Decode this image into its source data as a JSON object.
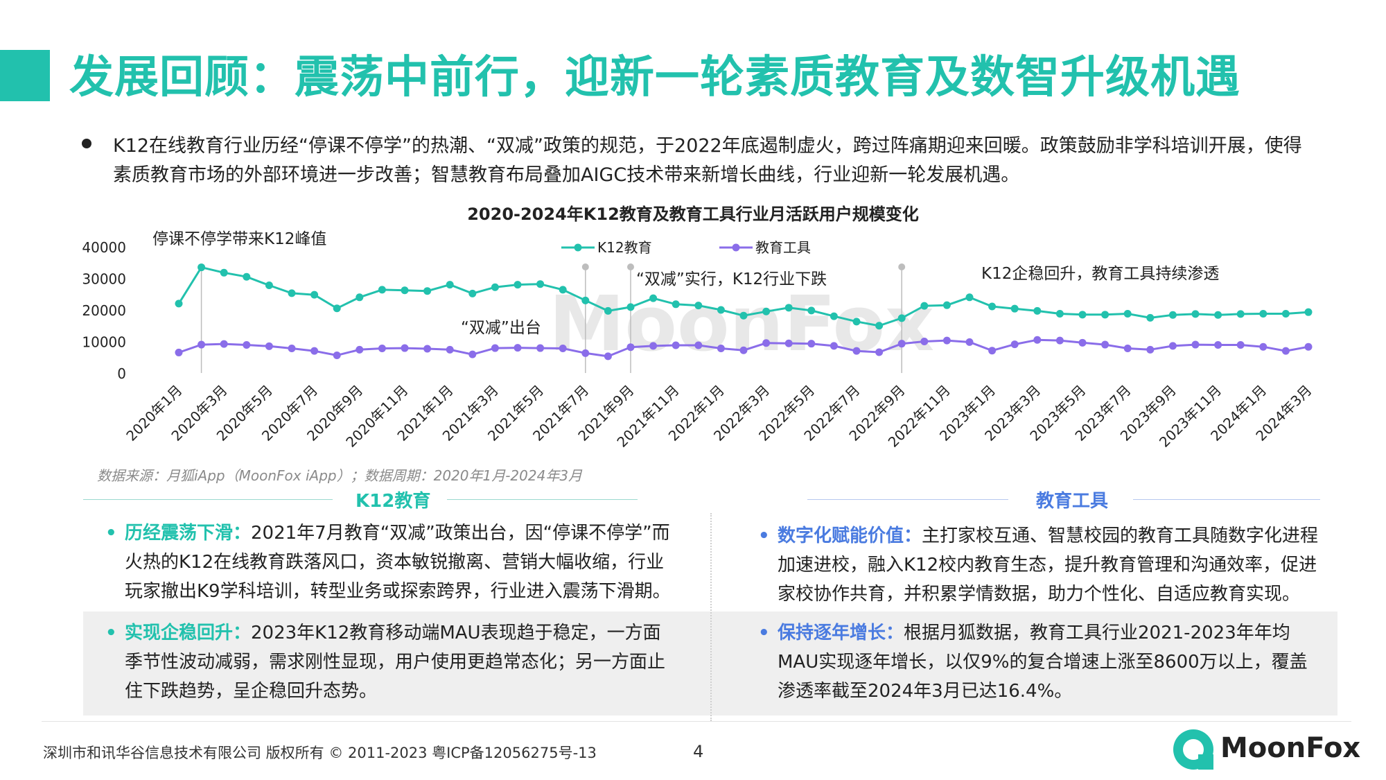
{
  "title": "发展回顾：震荡中前行，迎新一轮素质教育及数智升级机遇",
  "intro": "K12在线教育行业历经“停课不停学”的热潮、“双减”政策的规范，于2022年底遏制虚火，跨过阵痛期迎来回暖。政策鼓励非学科培训开展，使得素质教育市场的外部环境进一步改善；智慧教育布局叠加AIGC技术带来新增长曲线，行业迎新一轮发展机遇。",
  "chart_data": {
    "type": "line",
    "title": "2020-2024年K12教育及教育工具行业月活跃用户规模变化",
    "ylim": [
      0,
      40000
    ],
    "yticks": [
      "40000",
      "30000",
      "20000",
      "10000",
      "0"
    ],
    "x": [
      "2020年1月",
      "2020年2月",
      "2020年3月",
      "2020年4月",
      "2020年5月",
      "2020年6月",
      "2020年7月",
      "2020年8月",
      "2020年9月",
      "2020年10月",
      "2020年11月",
      "2020年12月",
      "2021年1月",
      "2021年2月",
      "2021年3月",
      "2021年4月",
      "2021年5月",
      "2021年6月",
      "2021年7月",
      "2021年8月",
      "2021年9月",
      "2021年10月",
      "2021年11月",
      "2021年12月",
      "2022年1月",
      "2022年2月",
      "2022年3月",
      "2022年4月",
      "2022年5月",
      "2022年6月",
      "2022年7月",
      "2022年8月",
      "2022年9月",
      "2022年10月",
      "2022年11月",
      "2022年12月",
      "2023年1月",
      "2023年2月",
      "2023年3月",
      "2023年4月",
      "2023年5月",
      "2023年6月",
      "2023年7月",
      "2023年8月",
      "2023年9月",
      "2023年10月",
      "2023年11月",
      "2023年12月",
      "2024年1月",
      "2024年2月",
      "2024年3月"
    ],
    "xtick_labels": [
      "2020年1月",
      "2020年3月",
      "2020年5月",
      "2020年7月",
      "2020年9月",
      "2020年11月",
      "2021年1月",
      "2021年3月",
      "2021年5月",
      "2021年7月",
      "2021年9月",
      "2021年11月",
      "2022年1月",
      "2022年3月",
      "2022年5月",
      "2022年7月",
      "2022年9月",
      "2022年11月",
      "2023年1月",
      "2023年3月",
      "2023年5月",
      "2023年7月",
      "2023年9月",
      "2023年11月",
      "2024年1月",
      "2024年3月"
    ],
    "series": [
      {
        "name": "K12教育",
        "color": "#22c1ad",
        "values": [
          22000,
          33500,
          31800,
          30500,
          27800,
          25300,
          24800,
          20500,
          24000,
          26400,
          26200,
          26000,
          28000,
          25200,
          27200,
          28000,
          28200,
          26400,
          23000,
          19700,
          20900,
          23700,
          21800,
          21400,
          20000,
          18200,
          19500,
          20700,
          19800,
          18000,
          16300,
          15000,
          17400,
          21300,
          21500,
          24000,
          21100,
          20400,
          19700,
          18800,
          18500,
          18500,
          18800,
          17500,
          18400,
          18700,
          18400,
          18700,
          18800,
          18800,
          19300
        ]
      },
      {
        "name": "教育工具",
        "color": "#8a6de9",
        "values": [
          6500,
          9000,
          9200,
          8900,
          8500,
          7800,
          7000,
          5600,
          7400,
          7800,
          7900,
          7700,
          7400,
          5900,
          7900,
          8000,
          7900,
          7800,
          6300,
          5300,
          8200,
          8600,
          8800,
          8800,
          7800,
          7200,
          9500,
          9400,
          9300,
          8600,
          7000,
          6600,
          9300,
          10000,
          10300,
          9800,
          7100,
          9100,
          10500,
          10300,
          9600,
          9000,
          7800,
          7400,
          8600,
          9000,
          8900,
          8900,
          8300,
          7000,
          8300
        ]
      }
    ],
    "legend": "top",
    "annotations": [
      {
        "text": "停课不停学带来K12峰值",
        "x_index": 1
      },
      {
        "text": "“双减”出台",
        "x_index": 18
      },
      {
        "text": "“双减”实行，K12行业下跌",
        "x_index": 20
      },
      {
        "text": "K12企稳回升，教育工具持续渗透",
        "x_index": 32
      }
    ],
    "watermark": "MoonFox"
  },
  "source": "数据来源：月狐iApp（MoonFox iApp）；数据周期：2020年1月-2024年3月",
  "left_section": {
    "heading": "K12教育",
    "heading_color": "#22c1ad",
    "items": [
      {
        "key": "历经震荡下滑：",
        "text": "2021年7月教育“双减”政策出台，因“停课不停学”而火热的K12在线教育跌落风口，资本敏锐撤离、营销大幅收缩，行业玩家撤出K9学科培训，转型业务或探索跨界，行业进入震荡下滑期。"
      },
      {
        "key": "实现企稳回升：",
        "text": "2023年K12教育移动端MAU表现趋于稳定，一方面季节性波动减弱，需求刚性显现，用户使用更趋常态化；另一方面止住下跌趋势，呈企稳回升态势。"
      }
    ]
  },
  "right_section": {
    "heading": "教育工具",
    "heading_color": "#4a7be0",
    "items": [
      {
        "key": "数字化赋能价值：",
        "text": "主打家校互通、智慧校园的教育工具随数字化进程加速进校，融入K12校内教育生态，提升教育管理和沟通效率，促进家校协作共育，并积累学情数据，助力个性化、自适应教育实现。"
      },
      {
        "key": "保持逐年增长：",
        "text": "根据月狐数据，教育工具行业2021-2023年年均MAU实现逐年增长，以仅9%的复合增速上涨至8600万以上，覆盖渗透率截至2024年3月已达16.4%。"
      }
    ]
  },
  "footer": {
    "copyright": "深圳市和讯华谷信息技术有限公司 版权所有 © 2011-2023 粤ICP备12056275号-13",
    "page": "4",
    "brand": "MoonFox"
  }
}
